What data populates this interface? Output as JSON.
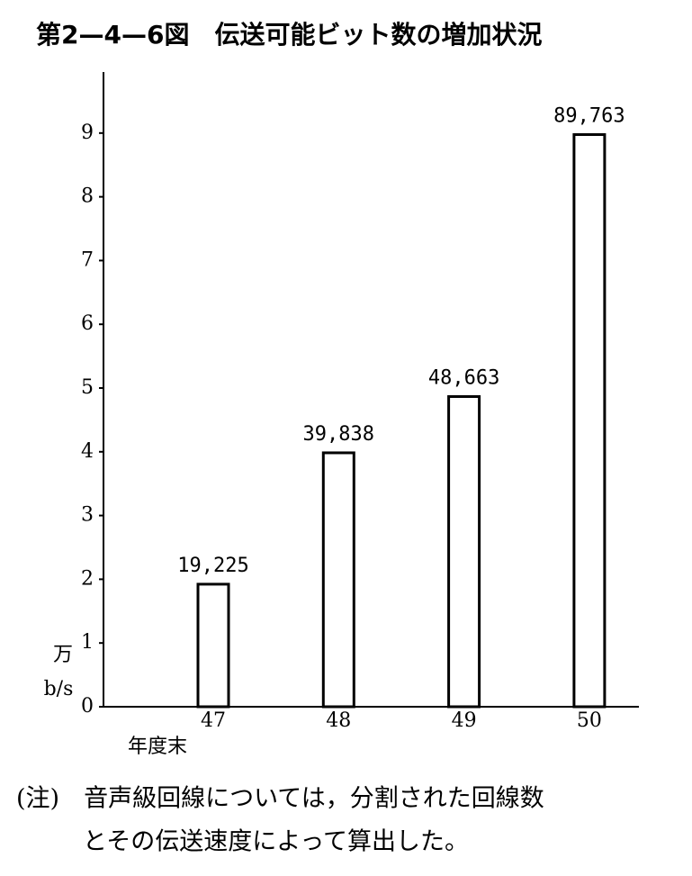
{
  "chart_data": {
    "type": "bar",
    "title": "第2—4—6図　伝送可能ビット数の増加状況",
    "y_label": [
      "万",
      "b/s"
    ],
    "x_label": "年度末",
    "categories": [
      "47",
      "48",
      "49",
      "50"
    ],
    "values": [
      1.9225,
      3.9838,
      4.8663,
      8.9763
    ],
    "value_labels": [
      "19,225",
      "39,838",
      "48,663",
      "89,763"
    ],
    "color": "#ffffff",
    "ylim": [
      0,
      10
    ],
    "yticks": [
      0,
      1,
      2,
      3,
      4,
      5,
      6,
      7,
      8,
      9
    ],
    "grid": false,
    "note": [
      "(注)　音声級回線については，分割された回線数",
      "とその伝送速度によって算出した。"
    ]
  }
}
